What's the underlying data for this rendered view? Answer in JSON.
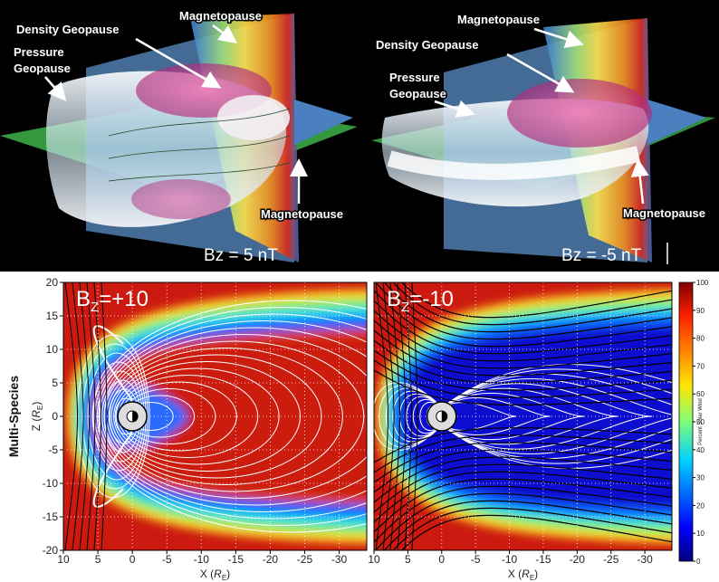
{
  "top_panels": [
    {
      "magnetopause_top": "Magnetopause",
      "density_geopause": "Density Geopause",
      "pressure_geopause": [
        "Pressure",
        "Geopause"
      ],
      "magnetopause_bottom": "Magnetopause",
      "caption": "Bz = 5 nT"
    },
    {
      "magnetopause_top": "Magnetopause",
      "density_geopause": "Density Geopause",
      "pressure_geopause": [
        "Pressure",
        "Geopause"
      ],
      "magnetopause_bottom": "Magnetopause",
      "caption": "Bz = -5 nT"
    }
  ],
  "bottom": {
    "row_label": "Multi-Species",
    "y_axis_label": {
      "prefix": "Z (",
      "unit": "R",
      "unit_sub": "E",
      "suffix": ")"
    },
    "x_axis_label": {
      "prefix": "X (",
      "unit": "R",
      "unit_sub": "E",
      "suffix": ")"
    },
    "xlim": [
      10,
      -34
    ],
    "ylim": [
      -20,
      20
    ],
    "xticks": [
      10,
      5,
      0,
      -5,
      -10,
      -15,
      -20,
      -25,
      -30
    ],
    "yticks": [
      20,
      15,
      10,
      5,
      0,
      -5,
      -10,
      -15,
      -20
    ],
    "panels": [
      {
        "field": "B",
        "field_sub": "Z",
        "value": "=+10"
      },
      {
        "field": "B",
        "field_sub": "Z",
        "value": "=-10"
      }
    ],
    "colorbar": {
      "label": "Percent Solar Wind",
      "lim": [
        0,
        100
      ],
      "ticks": [
        0,
        10,
        20,
        30,
        40,
        50,
        60,
        70,
        80,
        90,
        100
      ]
    }
  }
}
